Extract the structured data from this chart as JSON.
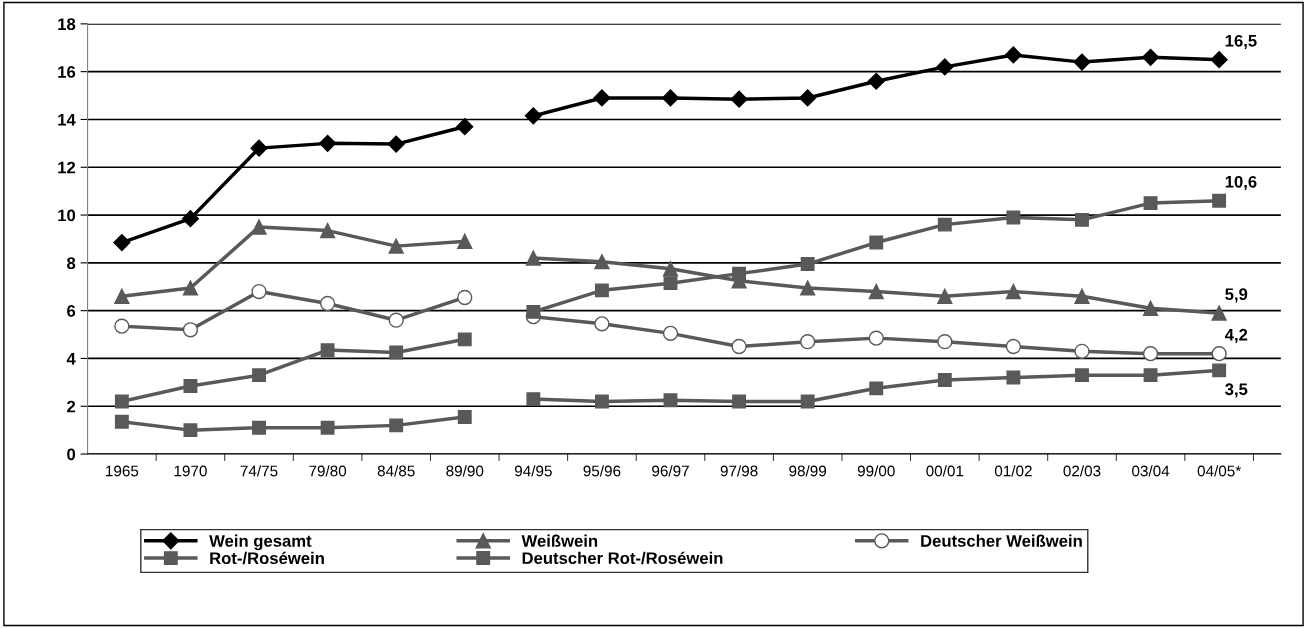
{
  "chart_data": {
    "type": "line",
    "categories": [
      "1965",
      "1970",
      "74/75",
      "79/80",
      "84/85",
      "89/90",
      "94/95",
      "95/96",
      "96/97",
      "97/98",
      "98/99",
      "99/00",
      "00/01",
      "01/02",
      "02/03",
      "03/04",
      "04/05*"
    ],
    "ylim": [
      0,
      18
    ],
    "yticks": [
      0,
      2,
      4,
      6,
      8,
      10,
      12,
      14,
      16,
      18
    ],
    "grid": "y",
    "legend": "bottom",
    "series": [
      {
        "name": "Wein gesamt",
        "color": "#000000",
        "marker": "diamond",
        "values": [
          8.85,
          9.85,
          12.8,
          13.0,
          12.97,
          13.7,
          null,
          null,
          null,
          null,
          null,
          null,
          null,
          null,
          null,
          null,
          null
        ]
      },
      {
        "name": "Weißwein",
        "color": "#595959",
        "marker": "triangle",
        "values": [
          6.6,
          6.95,
          9.5,
          9.35,
          8.7,
          8.9,
          null,
          null,
          null,
          null,
          null,
          null,
          null,
          null,
          null,
          null,
          null
        ]
      },
      {
        "name": "Deutscher Weißwein",
        "color": "#595959",
        "marker": "circle",
        "values": [
          5.35,
          5.2,
          6.8,
          6.3,
          5.6,
          6.55,
          null,
          null,
          null,
          null,
          null,
          null,
          null,
          null,
          null,
          null,
          null
        ]
      },
      {
        "name": "Rot-/Roséwein",
        "color": "#595959",
        "marker": "square",
        "values": [
          2.2,
          2.85,
          3.3,
          4.35,
          4.25,
          4.8,
          null,
          null,
          null,
          null,
          null,
          null,
          null,
          null,
          null,
          null,
          null
        ]
      },
      {
        "name": "Deutscher Rot-/Roséwein",
        "color": "#595959",
        "marker": "square",
        "values": [
          1.35,
          1.0,
          1.1,
          1.1,
          1.2,
          1.55,
          null,
          null,
          null,
          null,
          null,
          null,
          null,
          null,
          null,
          null,
          null
        ]
      },
      {
        "color": "#000000",
        "marker": "diamond",
        "values": [
          null,
          null,
          null,
          null,
          null,
          null,
          14.15,
          14.9,
          14.9,
          14.85,
          14.9,
          15.6,
          16.2,
          16.7,
          16.4,
          16.6,
          16.5
        ],
        "value_labels": [
          null,
          null,
          null,
          null,
          null,
          null,
          null,
          null,
          null,
          null,
          null,
          null,
          null,
          null,
          null,
          null,
          "16,5"
        ]
      },
      {
        "color": "#595959",
        "marker": "triangle",
        "values": [
          null,
          null,
          null,
          null,
          null,
          null,
          8.2,
          8.05,
          7.75,
          7.25,
          6.95,
          6.8,
          6.6,
          6.8,
          6.6,
          6.1,
          5.9
        ],
        "value_labels": [
          null,
          null,
          null,
          null,
          null,
          null,
          null,
          null,
          null,
          null,
          null,
          null,
          null,
          null,
          null,
          null,
          "5,9"
        ]
      },
      {
        "color": "#595959",
        "marker": "circle",
        "values": [
          null,
          null,
          null,
          null,
          null,
          null,
          5.75,
          5.45,
          5.05,
          4.5,
          4.7,
          4.85,
          4.7,
          4.5,
          4.3,
          4.2,
          4.2
        ],
        "value_labels": [
          null,
          null,
          null,
          null,
          null,
          null,
          null,
          null,
          null,
          null,
          null,
          null,
          null,
          null,
          null,
          null,
          "4,2"
        ]
      },
      {
        "color": "#595959",
        "marker": "square",
        "values": [
          null,
          null,
          null,
          null,
          null,
          null,
          5.95,
          6.85,
          7.15,
          7.55,
          7.95,
          8.85,
          9.6,
          9.9,
          9.8,
          10.5,
          10.6
        ],
        "value_labels": [
          null,
          null,
          null,
          null,
          null,
          null,
          null,
          null,
          null,
          null,
          null,
          null,
          null,
          null,
          null,
          null,
          "10,6"
        ]
      },
      {
        "color": "#595959",
        "marker": "square",
        "values": [
          null,
          null,
          null,
          null,
          null,
          null,
          2.3,
          2.2,
          2.25,
          2.2,
          2.2,
          2.75,
          3.1,
          3.2,
          3.3,
          3.3,
          3.5
        ],
        "value_labels": [
          null,
          null,
          null,
          null,
          null,
          null,
          null,
          null,
          null,
          null,
          null,
          null,
          null,
          null,
          null,
          null,
          "3,5"
        ]
      }
    ]
  }
}
